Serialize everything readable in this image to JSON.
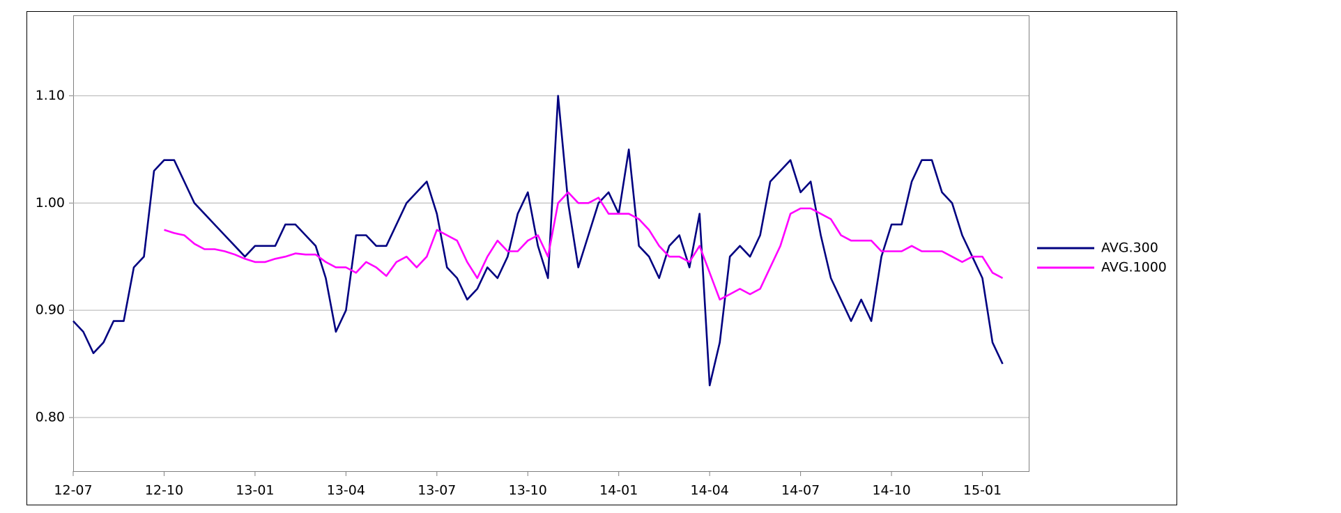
{
  "chart_data": {
    "type": "line",
    "x": [
      "12-07",
      "12-07",
      "12-07",
      "12-08",
      "12-08",
      "12-08",
      "12-09",
      "12-09",
      "12-09",
      "12-10",
      "12-10",
      "12-10",
      "12-11",
      "12-11",
      "12-11",
      "12-12",
      "12-12",
      "12-12",
      "13-01",
      "13-01",
      "13-01",
      "13-02",
      "13-02",
      "13-02",
      "13-03",
      "13-03",
      "13-03",
      "13-04",
      "13-04",
      "13-04",
      "13-05",
      "13-05",
      "13-05",
      "13-06",
      "13-06",
      "13-06",
      "13-07",
      "13-07",
      "13-07",
      "13-08",
      "13-08",
      "13-08",
      "13-09",
      "13-09",
      "13-09",
      "13-10",
      "13-10",
      "13-10",
      "13-11",
      "13-11",
      "13-11",
      "13-12",
      "13-12",
      "13-12",
      "14-01",
      "14-01",
      "14-01",
      "14-02",
      "14-02",
      "14-02",
      "14-03",
      "14-03",
      "14-03",
      "14-04",
      "14-04",
      "14-04",
      "14-05",
      "14-05",
      "14-05",
      "14-06",
      "14-06",
      "14-06",
      "14-07",
      "14-07",
      "14-07",
      "14-08",
      "14-08",
      "14-08",
      "14-09",
      "14-09",
      "14-09",
      "14-10",
      "14-10",
      "14-10",
      "14-11",
      "14-11",
      "14-11",
      "14-12",
      "14-12",
      "14-12",
      "15-01",
      "15-01",
      "15-01"
    ],
    "series": [
      {
        "name": "AVG.300",
        "color": "#000080",
        "values": [
          0.89,
          0.88,
          0.86,
          0.87,
          0.89,
          0.89,
          0.94,
          0.95,
          1.03,
          1.04,
          1.04,
          1.02,
          1.0,
          0.99,
          0.98,
          0.97,
          0.96,
          0.95,
          0.96,
          0.96,
          0.96,
          0.98,
          0.98,
          0.97,
          0.96,
          0.93,
          0.88,
          0.9,
          0.97,
          0.97,
          0.96,
          0.96,
          0.98,
          1.0,
          1.01,
          1.02,
          0.99,
          0.94,
          0.93,
          0.91,
          0.92,
          0.94,
          0.93,
          0.95,
          0.99,
          1.01,
          0.96,
          0.93,
          1.1,
          1.0,
          0.94,
          0.97,
          1.0,
          1.01,
          0.99,
          1.05,
          0.96,
          0.95,
          0.93,
          0.96,
          0.97,
          0.94,
          0.99,
          0.83,
          0.87,
          0.95,
          0.96,
          0.95,
          0.97,
          1.02,
          1.03,
          1.04,
          1.01,
          1.02,
          0.97,
          0.93,
          0.91,
          0.89,
          0.91,
          0.89,
          0.95,
          0.98,
          0.98,
          1.02,
          1.04,
          1.04,
          1.01,
          1.0,
          0.97,
          0.95,
          0.93,
          0.87,
          0.85
        ]
      },
      {
        "name": "AVG.1000",
        "color": "#ff00ff",
        "values": [
          null,
          null,
          null,
          null,
          null,
          null,
          null,
          null,
          null,
          0.975,
          0.972,
          0.97,
          0.962,
          0.957,
          0.957,
          0.955,
          0.952,
          0.948,
          0.945,
          0.945,
          0.948,
          0.95,
          0.953,
          0.952,
          0.952,
          0.945,
          0.94,
          0.94,
          0.935,
          0.945,
          0.94,
          0.932,
          0.945,
          0.95,
          0.94,
          0.95,
          0.975,
          0.97,
          0.965,
          0.945,
          0.93,
          0.95,
          0.965,
          0.955,
          0.955,
          0.965,
          0.97,
          0.95,
          1.0,
          1.01,
          1.0,
          1.0,
          1.005,
          0.99,
          0.99,
          0.99,
          0.985,
          0.975,
          0.96,
          0.95,
          0.95,
          0.945,
          0.96,
          0.935,
          0.91,
          0.915,
          0.92,
          0.915,
          0.92,
          0.94,
          0.96,
          0.99,
          0.995,
          0.995,
          0.99,
          0.985,
          0.97,
          0.965,
          0.965,
          0.965,
          0.955,
          0.955,
          0.955,
          0.96,
          0.955,
          0.955,
          0.955,
          0.95,
          0.945,
          0.95,
          0.95,
          0.935,
          0.93
        ]
      }
    ],
    "xlim": [
      "12-07",
      "15-02"
    ],
    "xticks": [
      "12-07",
      "12-10",
      "13-01",
      "13-04",
      "13-07",
      "13-10",
      "14-01",
      "14-04",
      "14-07",
      "14-10",
      "15-01"
    ],
    "ylim": [
      0.75,
      1.175
    ],
    "yticks": [
      {
        "value": 0.8,
        "label": "0.80"
      },
      {
        "value": 0.9,
        "label": "0.90"
      },
      {
        "value": 1.0,
        "label": "1.00"
      },
      {
        "value": 1.1,
        "label": "1.10"
      }
    ],
    "grid": true,
    "legend": "right"
  }
}
